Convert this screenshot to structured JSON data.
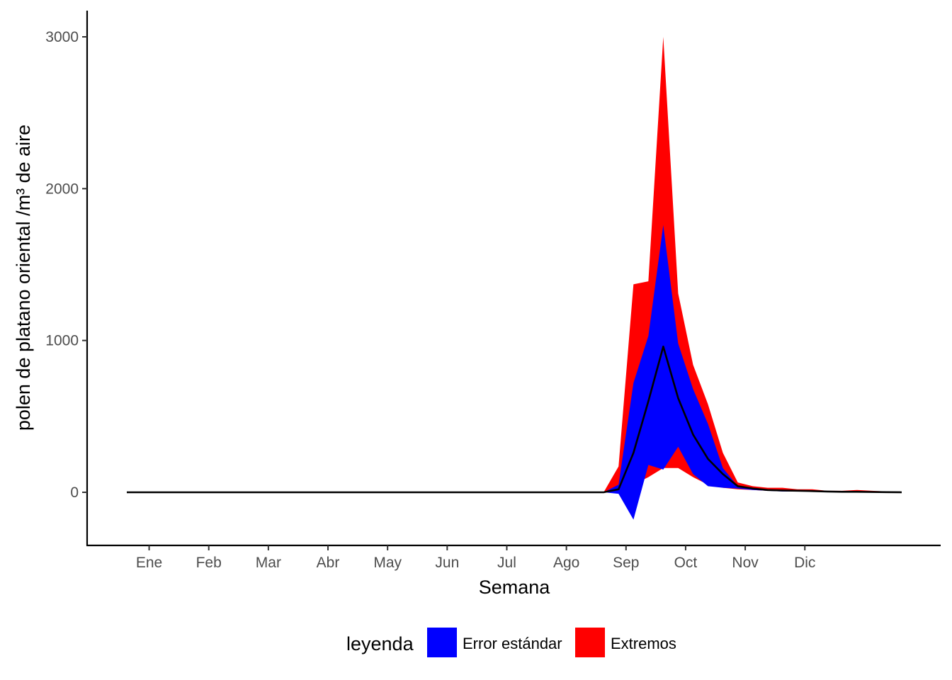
{
  "chart_data": {
    "type": "area",
    "title": "",
    "xlabel": "Semana",
    "ylabel": "polen de platano oriental /m³ de aire",
    "x_unit": "week",
    "xlim": [
      1,
      53
    ],
    "ylim": [
      -350,
      3150
    ],
    "yticks": [
      0,
      1000,
      2000,
      3000
    ],
    "month_ticks": [
      {
        "label": "Ene",
        "week": 2.5
      },
      {
        "label": "Feb",
        "week": 6.5
      },
      {
        "label": "Mar",
        "week": 10.5
      },
      {
        "label": "Abr",
        "week": 14.5
      },
      {
        "label": "May",
        "week": 18.5
      },
      {
        "label": "Jun",
        "week": 22.5
      },
      {
        "label": "Jul",
        "week": 26.5
      },
      {
        "label": "Ago",
        "week": 30.5
      },
      {
        "label": "Sep",
        "week": 34.5
      },
      {
        "label": "Oct",
        "week": 38.5
      },
      {
        "label": "Nov",
        "week": 42.5
      },
      {
        "label": "Dic",
        "week": 46.5
      }
    ],
    "grid": false,
    "legend": {
      "title": "leyenda",
      "position": "bottom",
      "entries": [
        {
          "label": "Error estándar",
          "color": "#0000ff"
        },
        {
          "label": "Extremos",
          "color": "#ff0000"
        }
      ]
    },
    "x": [
      1,
      2,
      3,
      4,
      5,
      6,
      7,
      8,
      9,
      10,
      11,
      12,
      13,
      14,
      15,
      16,
      17,
      18,
      19,
      20,
      21,
      22,
      23,
      24,
      25,
      26,
      27,
      28,
      28.5,
      29,
      30,
      31,
      32,
      33,
      34,
      35,
      36,
      37,
      38,
      39,
      40,
      41,
      42,
      43,
      44,
      45,
      46,
      47,
      48,
      49,
      50,
      51,
      52,
      53
    ],
    "series": [
      {
        "name": "Extremos",
        "color": "#ff0000",
        "upper": [
          0,
          0,
          0,
          0,
          0,
          0,
          0,
          0,
          0,
          0,
          0,
          0,
          0,
          0,
          0,
          0,
          0,
          0,
          0,
          0,
          0,
          0,
          0,
          0,
          0,
          0,
          0,
          0,
          0,
          0,
          0,
          0,
          0,
          0,
          170,
          1370,
          1390,
          3000,
          1310,
          840,
          580,
          260,
          65,
          40,
          30,
          30,
          20,
          20,
          10,
          10,
          15,
          10,
          5,
          0
        ],
        "lower": [
          0,
          0,
          0,
          0,
          0,
          0,
          0,
          0,
          0,
          0,
          0,
          0,
          0,
          0,
          0,
          0,
          0,
          0,
          0,
          0,
          0,
          0,
          0,
          0,
          0,
          0,
          0,
          0,
          0,
          0,
          0,
          0,
          0,
          0,
          0,
          50,
          100,
          160,
          160,
          100,
          50,
          30,
          20,
          15,
          10,
          10,
          10,
          5,
          5,
          0,
          0,
          0,
          0,
          0
        ]
      },
      {
        "name": "Error estándar",
        "color": "#0000ff",
        "upper": [
          0,
          0,
          0,
          0,
          0,
          0,
          0,
          0,
          0,
          0,
          0,
          0,
          0,
          0,
          0,
          0,
          0,
          0,
          0,
          0,
          0,
          0,
          0,
          0,
          0,
          0,
          0,
          0,
          0,
          0,
          0,
          0,
          0,
          0,
          50,
          720,
          1030,
          1760,
          980,
          680,
          450,
          160,
          40,
          25,
          15,
          15,
          10,
          10,
          5,
          5,
          5,
          5,
          0,
          0
        ],
        "lower": [
          0,
          0,
          0,
          0,
          0,
          0,
          0,
          0,
          0,
          0,
          0,
          0,
          0,
          0,
          0,
          0,
          0,
          0,
          0,
          0,
          0,
          0,
          0,
          0,
          0,
          0,
          0,
          0,
          0,
          0,
          0,
          0,
          0,
          0,
          -10,
          -180,
          180,
          150,
          300,
          120,
          40,
          30,
          25,
          15,
          10,
          5,
          5,
          5,
          0,
          0,
          0,
          0,
          0,
          0
        ]
      },
      {
        "name": "",
        "color": "#000000",
        "values": [
          0,
          0,
          0,
          0,
          0,
          0,
          0,
          0,
          0,
          0,
          0,
          0,
          0,
          0,
          0,
          0,
          0,
          0,
          0,
          0,
          0,
          0,
          0,
          0,
          0,
          0,
          0,
          0,
          0,
          0,
          0,
          0,
          0,
          0,
          20,
          260,
          600,
          960,
          620,
          380,
          220,
          120,
          40,
          25,
          15,
          12,
          10,
          8,
          5,
          3,
          3,
          2,
          1,
          0
        ]
      }
    ]
  }
}
